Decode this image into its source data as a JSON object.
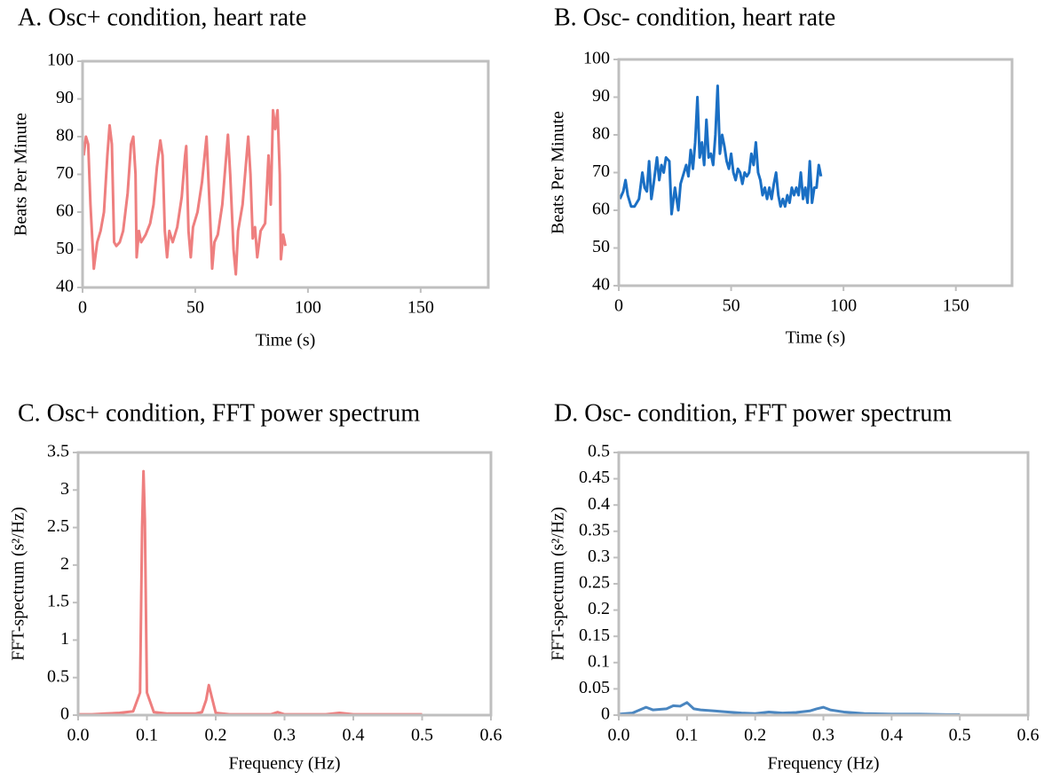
{
  "chart_data": [
    {
      "type": "line",
      "title": "A. Osc+ condition, heart rate",
      "xlabel": "Time (s)",
      "ylabel": "Beats Per Minute",
      "color": "#ee7f7f",
      "x": [
        0.5,
        1.5,
        2.5,
        3.5,
        5,
        6.5,
        8,
        9.5,
        11,
        12,
        13,
        14,
        15,
        16.5,
        18,
        20,
        21.5,
        22.5,
        23.5,
        24,
        25,
        26,
        28,
        30,
        31.5,
        33,
        34.5,
        35.5,
        36.5,
        37.5,
        38.5,
        40,
        42,
        44,
        45.5,
        46,
        47,
        48,
        49,
        51,
        53,
        55,
        56.5,
        57.5,
        58.5,
        60,
        62,
        64.5,
        65.5,
        67,
        68,
        69,
        71,
        73.5,
        74.5,
        75.5,
        76.5,
        77.5,
        79,
        81,
        82.5,
        83.5,
        84.5,
        85.5,
        86.5,
        87.5,
        88,
        89,
        90
      ],
      "values": [
        75,
        80,
        78,
        62,
        45,
        52,
        55,
        60,
        75,
        83,
        78,
        52,
        51,
        52,
        55,
        65,
        78,
        80,
        70,
        48,
        55,
        52,
        54,
        57,
        62,
        72,
        79,
        75,
        55,
        48,
        55,
        52,
        56,
        64,
        75,
        77.5,
        55,
        48,
        56,
        60,
        68,
        80,
        60,
        45,
        52,
        54,
        62,
        80.5,
        70,
        50,
        43.5,
        55,
        62,
        80,
        70,
        53,
        56,
        48,
        55,
        57,
        75,
        62,
        87,
        82,
        87,
        70,
        47.5,
        54,
        51
      ],
      "xlim": [
        0,
        180
      ],
      "xticks": [
        0,
        50,
        100,
        150
      ],
      "ylim": [
        40,
        100
      ],
      "yticks": [
        40,
        50,
        60,
        70,
        80,
        90,
        100
      ]
    },
    {
      "type": "line",
      "title": "B. Osc- condition, heart rate",
      "xlabel": "Time (s)",
      "ylabel": "Beats Per Minute",
      "color": "#1a6fc4",
      "x": [
        0.5,
        2,
        3,
        4,
        5.5,
        7,
        9,
        10.5,
        11.5,
        12.5,
        13.5,
        14.5,
        15.5,
        17,
        18,
        19,
        20,
        21,
        22.5,
        23.5,
        25,
        26.5,
        27.5,
        29,
        30,
        31,
        32,
        33,
        34,
        35,
        36,
        37,
        38,
        39,
        40,
        41,
        42,
        43,
        44,
        45,
        46,
        47,
        48,
        49,
        50,
        51,
        52,
        53,
        54,
        55,
        56,
        57,
        58,
        59,
        60,
        61,
        62,
        63,
        64,
        65,
        66,
        67,
        68,
        69,
        70,
        71,
        72,
        73,
        74,
        75,
        76,
        77,
        78,
        79,
        80,
        81,
        82,
        83,
        84,
        85,
        86,
        87,
        88,
        89,
        90
      ],
      "values": [
        63,
        65,
        68,
        64,
        61,
        61,
        63,
        70,
        66,
        65,
        73,
        63,
        67,
        74,
        68,
        72,
        70,
        74,
        73,
        59,
        66,
        60,
        67,
        70,
        72,
        69,
        76,
        71,
        78,
        90,
        74,
        78,
        72,
        84,
        74,
        75,
        72,
        80,
        93,
        75,
        80,
        77,
        73,
        71,
        75,
        70,
        68,
        71,
        70,
        67,
        70,
        69,
        70,
        75,
        72,
        78,
        70,
        68,
        64,
        66,
        63,
        66,
        63,
        67,
        70,
        64,
        61,
        63,
        61,
        64,
        62,
        66,
        64,
        66,
        64,
        70,
        63,
        66,
        62,
        73,
        62,
        66,
        66,
        72,
        69
      ],
      "xlim": [
        0,
        175
      ],
      "xticks": [
        0,
        50,
        100,
        150
      ],
      "ylim": [
        40,
        100
      ],
      "yticks": [
        40,
        50,
        60,
        70,
        80,
        90,
        100
      ]
    },
    {
      "type": "line",
      "title": "C. Osc+ condition, FFT power spectrum",
      "xlabel": "Frequency (Hz)",
      "ylabel": "FFT-spectrum (s²/Hz)",
      "color": "#ee7f7f",
      "x": [
        0,
        0.02,
        0.04,
        0.06,
        0.08,
        0.09,
        0.093,
        0.095,
        0.097,
        0.1,
        0.11,
        0.13,
        0.15,
        0.17,
        0.18,
        0.186,
        0.19,
        0.194,
        0.2,
        0.22,
        0.25,
        0.28,
        0.29,
        0.3,
        0.33,
        0.36,
        0.38,
        0.4,
        0.43,
        0.46,
        0.5
      ],
      "values": [
        0.01,
        0.01,
        0.02,
        0.03,
        0.05,
        0.3,
        2.5,
        3.25,
        2.6,
        0.3,
        0.04,
        0.02,
        0.02,
        0.02,
        0.04,
        0.2,
        0.4,
        0.25,
        0.03,
        0.01,
        0.01,
        0.01,
        0.04,
        0.01,
        0.01,
        0.01,
        0.03,
        0.01,
        0.01,
        0.01,
        0.01
      ],
      "xlim": [
        0,
        0.6
      ],
      "xticks": [
        {
          "value": 0,
          "label": "0.0"
        },
        0.1,
        0.2,
        0.3,
        0.4,
        0.5,
        0.6
      ],
      "ylim": [
        0,
        3.5
      ],
      "yticks": [
        0,
        0.5,
        1,
        1.5,
        2,
        2.5,
        3,
        3.5
      ]
    },
    {
      "type": "line",
      "title": "D. Osc- condition, FFT power spectrum",
      "xlabel": "Frequency (Hz)",
      "ylabel": "FFT-spectrum (s²/Hz)",
      "color": "#4a86c0",
      "x": [
        0,
        0.02,
        0.04,
        0.05,
        0.07,
        0.08,
        0.09,
        0.1,
        0.11,
        0.12,
        0.14,
        0.16,
        0.18,
        0.2,
        0.22,
        0.24,
        0.26,
        0.28,
        0.29,
        0.3,
        0.31,
        0.33,
        0.36,
        0.4,
        0.44,
        0.48,
        0.5
      ],
      "values": [
        0.002,
        0.004,
        0.015,
        0.01,
        0.012,
        0.018,
        0.017,
        0.024,
        0.012,
        0.01,
        0.008,
        0.006,
        0.004,
        0.003,
        0.006,
        0.004,
        0.005,
        0.008,
        0.012,
        0.015,
        0.01,
        0.006,
        0.003,
        0.002,
        0.002,
        0.001,
        0.001
      ],
      "xlim": [
        0,
        0.6
      ],
      "xticks": [
        {
          "value": 0,
          "label": "0.0"
        },
        0.1,
        0.2,
        0.3,
        0.4,
        0.5,
        0.6
      ],
      "ylim": [
        0,
        0.5
      ],
      "yticks": [
        0,
        0.05,
        0.1,
        0.15,
        0.2,
        0.25,
        0.3,
        0.35,
        0.4,
        0.45,
        0.5
      ]
    }
  ]
}
